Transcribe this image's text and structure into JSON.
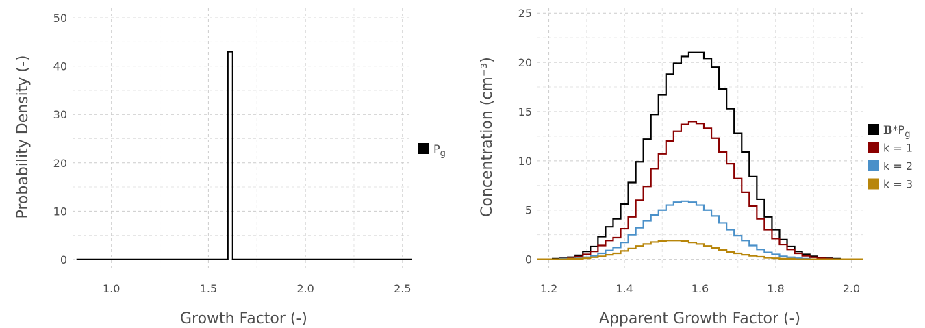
{
  "chart_data": [
    {
      "type": "line",
      "step": true,
      "xlabel": "Growth Factor (-)",
      "ylabel": "Probability Density (-)",
      "xlim": [
        0.8,
        2.55
      ],
      "ylim": [
        -2,
        52
      ],
      "xticks": [
        1.0,
        1.5,
        2.0,
        2.5
      ],
      "xtick_labels": [
        "1.0",
        "1.5",
        "2.0",
        "2.5"
      ],
      "yticks": [
        0,
        10,
        20,
        30,
        40,
        50
      ],
      "ytick_labels": [
        "0",
        "10",
        "20",
        "30",
        "40",
        "50"
      ],
      "grid": true,
      "legend_position": "right",
      "series": [
        {
          "name": "Pg",
          "label_base": "P",
          "label_sub": "g",
          "color": "#000000",
          "x": [
            0.82,
            1.6,
            1.6,
            1.625,
            1.625,
            2.55
          ],
          "y": [
            0,
            0,
            43,
            43,
            0,
            0
          ]
        }
      ]
    },
    {
      "type": "line",
      "step": true,
      "xlabel": "Apparent Growth Factor (-)",
      "ylabel": "Concentration (cm⁻³)",
      "xlim": [
        1.17,
        2.03
      ],
      "ylim": [
        -1,
        25.5
      ],
      "xticks": [
        1.2,
        1.4,
        1.6,
        1.8,
        2.0
      ],
      "xtick_labels": [
        "1.2",
        "1.4",
        "1.6",
        "1.8",
        "2.0"
      ],
      "yticks": [
        0,
        5,
        10,
        15,
        20,
        25
      ],
      "ytick_labels": [
        "0",
        "5",
        "10",
        "15",
        "20",
        "25"
      ],
      "grid": true,
      "legend_position": "right",
      "edges": [
        1.17,
        1.19,
        1.21,
        1.23,
        1.25,
        1.27,
        1.29,
        1.31,
        1.33,
        1.35,
        1.37,
        1.39,
        1.41,
        1.43,
        1.45,
        1.47,
        1.49,
        1.51,
        1.53,
        1.55,
        1.57,
        1.59,
        1.61,
        1.63,
        1.65,
        1.67,
        1.69,
        1.71,
        1.73,
        1.75,
        1.77,
        1.79,
        1.81,
        1.83,
        1.85,
        1.87,
        1.89,
        1.91,
        1.93,
        1.95,
        1.97,
        1.99,
        2.01,
        2.03
      ],
      "series": [
        {
          "name": "B*Pg",
          "label_bold": "B",
          "label_base": "*P",
          "label_sub": "g",
          "color": "#000000",
          "values": [
            0.0,
            0.0,
            0.05,
            0.1,
            0.2,
            0.4,
            0.8,
            1.3,
            2.3,
            3.3,
            4.1,
            5.6,
            7.8,
            9.9,
            12.2,
            14.7,
            16.7,
            18.8,
            19.9,
            20.6,
            21.0,
            21.0,
            20.4,
            19.5,
            17.3,
            15.3,
            12.8,
            10.9,
            8.4,
            6.1,
            4.3,
            3.0,
            2.0,
            1.3,
            0.8,
            0.5,
            0.3,
            0.15,
            0.1,
            0.05,
            0.0,
            0.0,
            0.0
          ]
        },
        {
          "name": "k = 1",
          "color": "#8b0000",
          "values": [
            0.0,
            0.0,
            0.0,
            0.05,
            0.1,
            0.25,
            0.5,
            0.8,
            1.4,
            1.9,
            2.2,
            3.1,
            4.3,
            6.0,
            7.4,
            9.2,
            10.7,
            12.0,
            13.0,
            13.7,
            14.0,
            13.8,
            13.3,
            12.3,
            10.9,
            9.7,
            8.2,
            6.8,
            5.4,
            4.1,
            3.0,
            2.1,
            1.5,
            1.0,
            0.6,
            0.35,
            0.2,
            0.1,
            0.05,
            0.0,
            0.0,
            0.0,
            0.0
          ]
        },
        {
          "name": "k = 2",
          "color": "#4a90c9",
          "values": [
            0.0,
            0.0,
            0.0,
            0.05,
            0.05,
            0.1,
            0.2,
            0.35,
            0.6,
            0.9,
            1.2,
            1.7,
            2.5,
            3.2,
            3.9,
            4.5,
            5.0,
            5.5,
            5.8,
            5.9,
            5.8,
            5.5,
            5.0,
            4.4,
            3.7,
            3.0,
            2.4,
            1.9,
            1.4,
            1.0,
            0.7,
            0.5,
            0.3,
            0.2,
            0.1,
            0.05,
            0.0,
            0.0,
            0.0,
            0.0,
            0.0,
            0.0,
            0.0
          ]
        },
        {
          "name": "k = 3",
          "color": "#b8860b",
          "values": [
            0.0,
            0.0,
            0.0,
            0.0,
            0.05,
            0.05,
            0.1,
            0.2,
            0.3,
            0.45,
            0.6,
            0.85,
            1.1,
            1.35,
            1.55,
            1.75,
            1.85,
            1.9,
            1.9,
            1.85,
            1.7,
            1.55,
            1.35,
            1.15,
            0.95,
            0.75,
            0.6,
            0.45,
            0.35,
            0.25,
            0.15,
            0.1,
            0.05,
            0.05,
            0.0,
            0.0,
            0.0,
            0.0,
            0.0,
            0.0,
            0.0,
            0.0,
            0.0
          ]
        }
      ]
    }
  ]
}
